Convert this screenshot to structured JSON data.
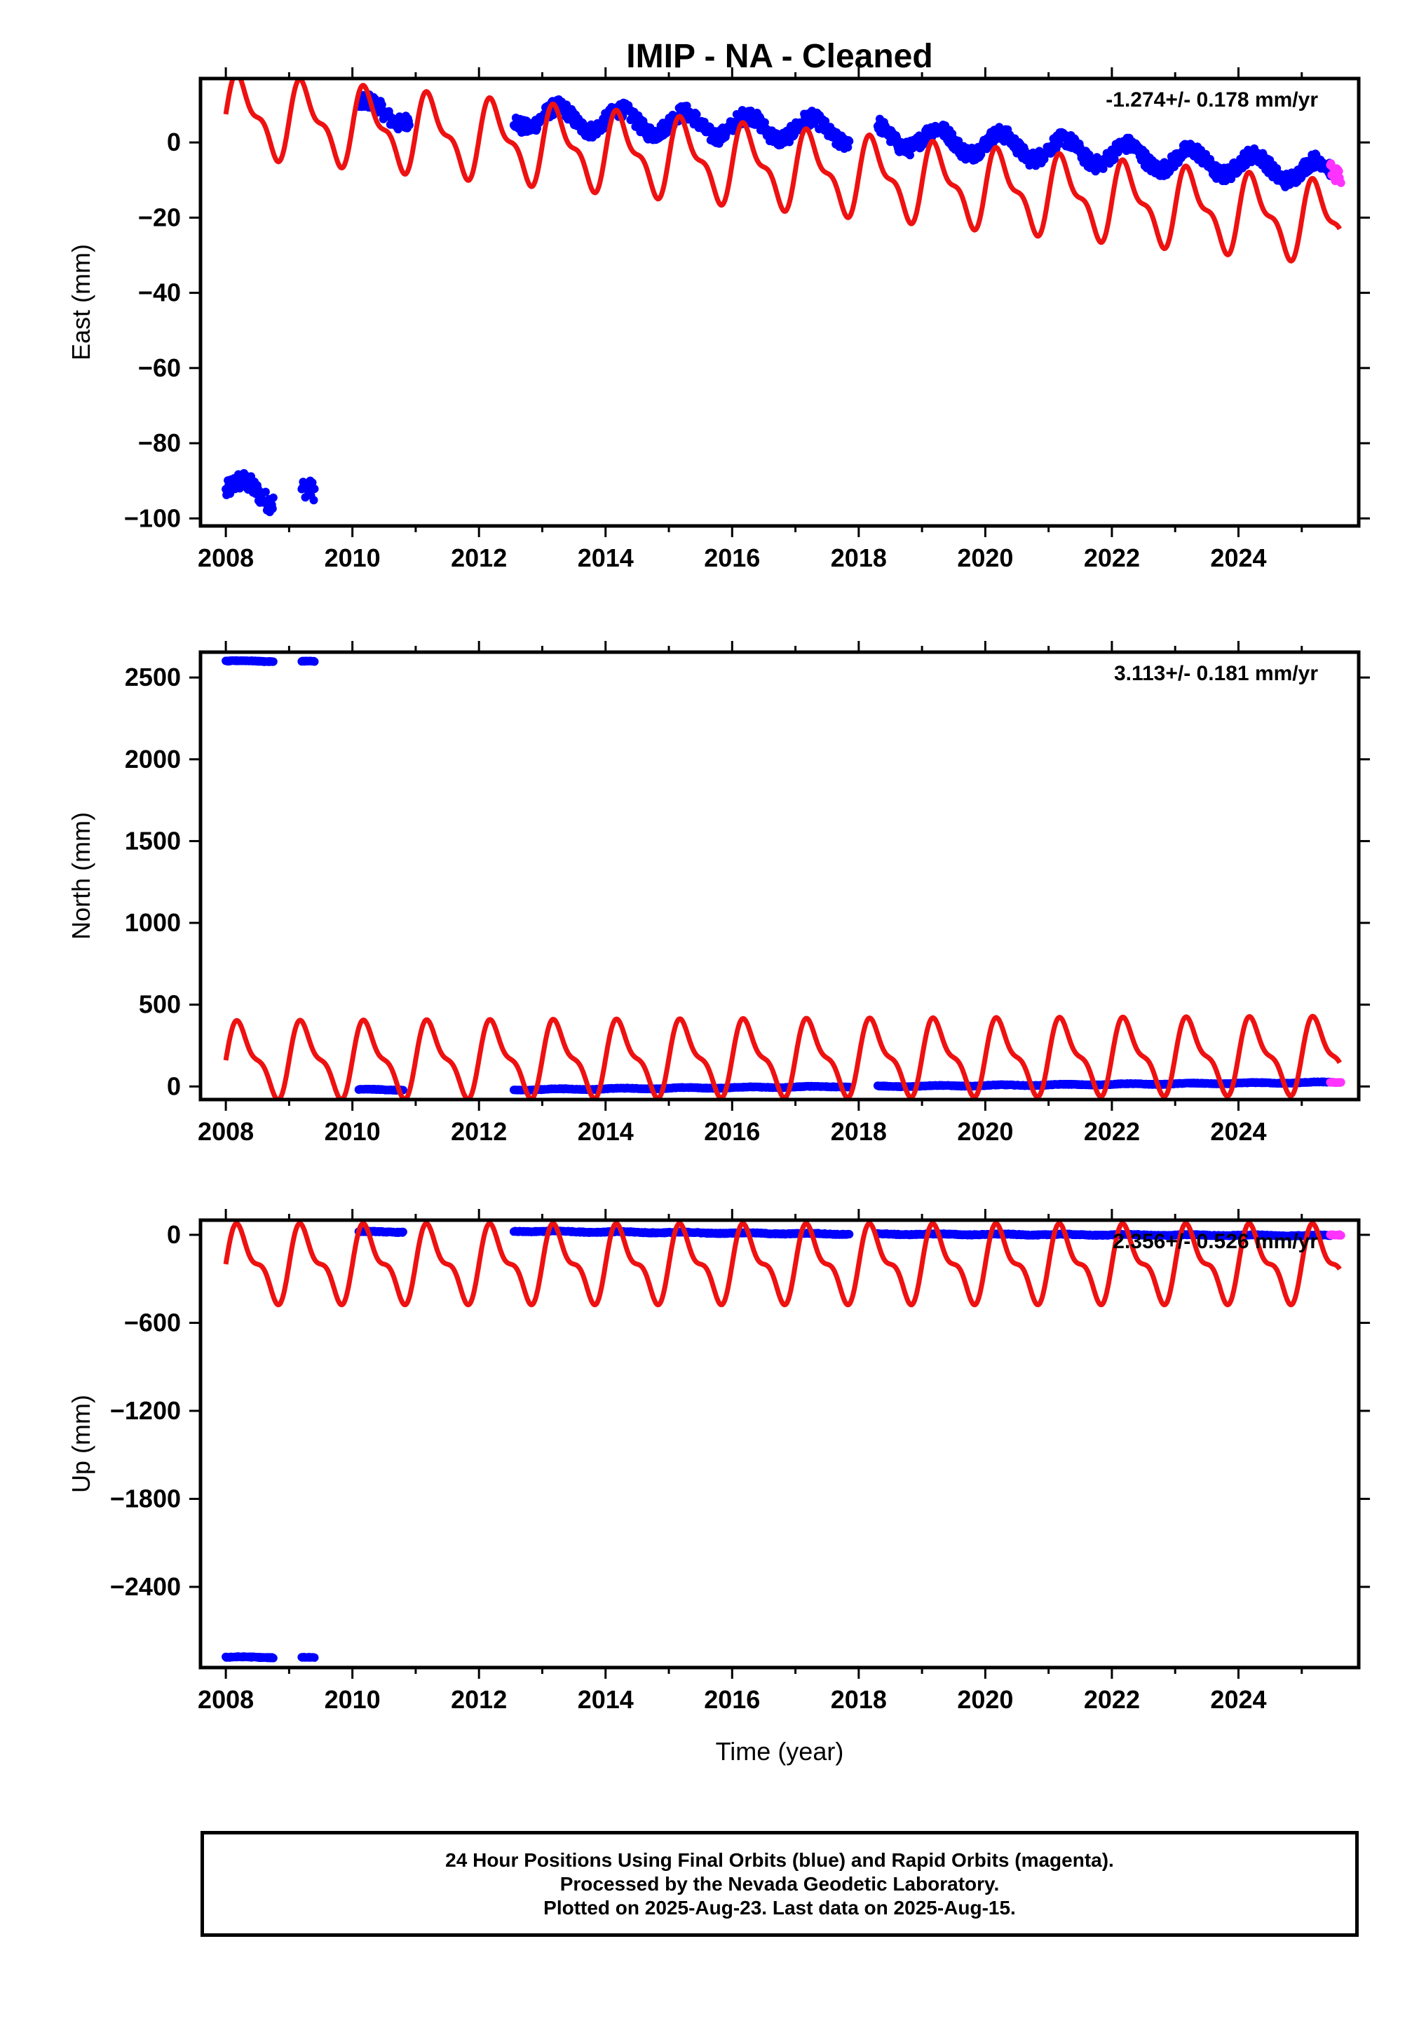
{
  "figure": {
    "title": "IMIP  - NA - Cleaned",
    "xlabel": "Time (year)"
  },
  "chart_data": [
    {
      "type": "scatter",
      "component": "East",
      "ylabel": "East (mm)",
      "rate_label": "-1.274+/- 0.178 mm/yr",
      "xlim": [
        2007.6,
        2025.9
      ],
      "ylim": [
        -102,
        17
      ],
      "xticks": [
        2008,
        2010,
        2012,
        2014,
        2016,
        2018,
        2020,
        2022,
        2024
      ],
      "yticks": [
        0,
        -20,
        -40,
        -60,
        -80,
        -100
      ],
      "series": [
        {
          "role": "final",
          "color": "#0000ff",
          "segments": [
            {
              "x0": 2008.0,
              "x1": 2008.75,
              "center": -93,
              "amp": 3,
              "noise": 2.5
            },
            {
              "x0": 2009.2,
              "x1": 2009.4,
              "center": -94,
              "amp": 2,
              "noise": 2.5
            },
            {
              "x0": 2010.1,
              "x1": 2010.9,
              "center": 8,
              "amp": 3,
              "noise": 2
            },
            {
              "x0": 2012.55,
              "x1": 2017.85,
              "center_start": 7,
              "center_end": 3,
              "amp": 3,
              "noise": 2
            },
            {
              "x0": 2018.3,
              "x1": 2025.45,
              "center_start": 2,
              "center_end": -8,
              "amp": 3,
              "noise": 2
            }
          ]
        },
        {
          "role": "rapid",
          "color": "#ff33ff",
          "segments": [
            {
              "x0": 2025.45,
              "x1": 2025.62,
              "center": -8,
              "amp": 2,
              "noise": 2
            }
          ]
        },
        {
          "role": "model",
          "color": "#ee1111",
          "x0": 2008.0,
          "x1": 2025.6,
          "slope": -1.65,
          "intercept": 7.5,
          "annual": 9,
          "semiannual": 4
        }
      ]
    },
    {
      "type": "scatter",
      "component": "North",
      "ylabel": "North (mm)",
      "rate_label": "3.113+/- 0.181 mm/yr",
      "xlim": [
        2007.6,
        2025.9
      ],
      "ylim": [
        -80,
        2655
      ],
      "xticks": [
        2008,
        2010,
        2012,
        2014,
        2016,
        2018,
        2020,
        2022,
        2024
      ],
      "yticks": [
        0,
        500,
        1000,
        1500,
        2000,
        2500
      ],
      "series": [
        {
          "role": "final",
          "color": "#0000ff",
          "segments": [
            {
              "x0": 2008.0,
              "x1": 2008.75,
              "center": 2600,
              "amp": 3,
              "noise": 2
            },
            {
              "x0": 2009.2,
              "x1": 2009.4,
              "center": 2598,
              "amp": 2,
              "noise": 2
            },
            {
              "x0": 2010.1,
              "x1": 2010.8,
              "center": -20,
              "amp": 3,
              "noise": 2
            },
            {
              "x0": 2012.55,
              "x1": 2017.85,
              "center_start": -20,
              "center_end": 0,
              "amp": 3,
              "noise": 2
            },
            {
              "x0": 2018.3,
              "x1": 2025.45,
              "center_start": 0,
              "center_end": 25,
              "amp": 3,
              "noise": 2
            }
          ]
        },
        {
          "role": "rapid",
          "color": "#ff33ff",
          "segments": [
            {
              "x0": 2025.45,
              "x1": 2025.62,
              "center": 25,
              "amp": 2,
              "noise": 2
            }
          ]
        },
        {
          "role": "model",
          "color": "#ee1111",
          "x0": 2008.0,
          "x1": 2025.6,
          "slope": 1.5,
          "intercept": 160,
          "annual": 200,
          "semiannual": 80
        }
      ]
    },
    {
      "type": "scatter",
      "component": "Up",
      "ylabel": "Up (mm)",
      "rate_label": "2.356+/- 0.526 mm/yr",
      "xlim": [
        2007.6,
        2025.9
      ],
      "ylim": [
        -2950,
        100
      ],
      "xticks": [
        2008,
        2010,
        2012,
        2014,
        2016,
        2018,
        2020,
        2022,
        2024
      ],
      "yticks": [
        0,
        -600,
        -1200,
        -1800,
        -2400
      ],
      "series": [
        {
          "role": "final",
          "color": "#0000ff",
          "segments": [
            {
              "x0": 2008.0,
              "x1": 2008.75,
              "center": -2880,
              "amp": 3,
              "noise": 3
            },
            {
              "x0": 2009.2,
              "x1": 2009.4,
              "center": -2882,
              "amp": 2,
              "noise": 3
            },
            {
              "x0": 2010.1,
              "x1": 2010.8,
              "center": 20,
              "amp": 3,
              "noise": 3
            },
            {
              "x0": 2012.55,
              "x1": 2017.85,
              "center_start": 25,
              "center_end": 5,
              "amp": 3,
              "noise": 3
            },
            {
              "x0": 2018.3,
              "x1": 2025.45,
              "center_start": 5,
              "center_end": -5,
              "amp": 3,
              "noise": 3
            }
          ]
        },
        {
          "role": "rapid",
          "color": "#ff33ff",
          "segments": [
            {
              "x0": 2025.45,
              "x1": 2025.62,
              "center": 0,
              "amp": 2,
              "noise": 3
            }
          ]
        },
        {
          "role": "model",
          "color": "#ee1111",
          "x0": 2008.0,
          "x1": 2025.6,
          "slope": 0,
          "intercept": -200,
          "annual": 220,
          "semiannual": 100
        }
      ]
    }
  ],
  "footer": {
    "line1": "24 Hour Positions Using Final Orbits (blue) and Rapid Orbits (magenta).",
    "line2": "Processed by the Nevada Geodetic Laboratory.",
    "line3": "Plotted on 2025-Aug-23. Last data on 2025-Aug-15."
  }
}
